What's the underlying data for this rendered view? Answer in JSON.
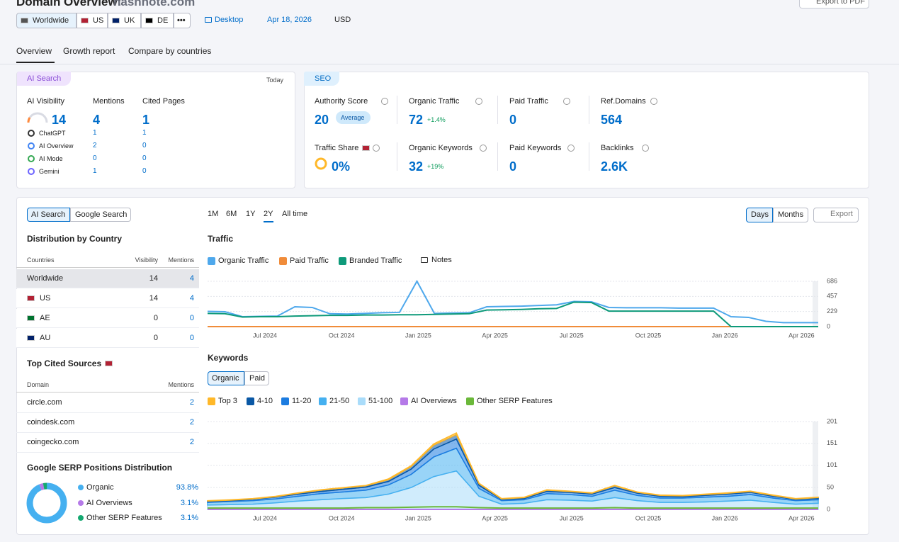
{
  "header": {
    "title": "Domain Overview:",
    "domain": "hashnote.com",
    "export": "Export to PDF"
  },
  "filters": {
    "regions": [
      "Worldwide",
      "US",
      "UK",
      "DE"
    ],
    "more": "•••",
    "device": "Desktop",
    "date": "Apr 18, 2026",
    "currency": "USD"
  },
  "tabs": [
    "Overview",
    "Growth report",
    "Compare by countries"
  ],
  "ai_search": {
    "badge": "AI Search",
    "period": "Today",
    "metrics": [
      {
        "label": "AI Visibility",
        "value": 14
      },
      {
        "label": "Mentions",
        "value": 4
      },
      {
        "label": "Cited Pages",
        "value": 1
      }
    ],
    "rows": [
      {
        "name": "ChatGPT",
        "mentions": 1,
        "cited": 1
      },
      {
        "name": "AI Overview",
        "mentions": 2,
        "cited": 0
      },
      {
        "name": "AI Mode",
        "mentions": 0,
        "cited": 0
      },
      {
        "name": "Gemini",
        "mentions": 1,
        "cited": 0
      }
    ]
  },
  "seo": {
    "badge": "SEO",
    "metrics": [
      {
        "label": "Authority Score",
        "value": 20,
        "badge": "Average"
      },
      {
        "label": "Organic Traffic",
        "value": 72,
        "change": "+1.4%"
      },
      {
        "label": "Paid Traffic",
        "value": 0
      },
      {
        "label": "Ref.Domains",
        "value": 564
      },
      {
        "label": "Traffic Share",
        "value": "0%"
      },
      {
        "label": "Organic Keywords",
        "value": 32,
        "change": "+19%"
      },
      {
        "label": "Paid Keywords",
        "value": 0
      },
      {
        "label": "Backlinks",
        "value": "2.6K"
      }
    ]
  },
  "left_panel": {
    "toggle": [
      "AI Search",
      "Google Search"
    ],
    "distribution": {
      "title": "Distribution by Country",
      "headers": [
        "Countries",
        "Visibility",
        "Mentions"
      ],
      "rows": [
        [
          "Worldwide",
          14,
          4
        ],
        [
          "US",
          14,
          4
        ],
        [
          "AE",
          0,
          0
        ],
        [
          "AU",
          0,
          0
        ]
      ]
    },
    "cited": {
      "title": "Top Cited Sources",
      "headers": [
        "Domain",
        "Mentions"
      ],
      "rows": [
        [
          "circle.com",
          2
        ],
        [
          "coindesk.com",
          2
        ],
        [
          "coingecko.com",
          2
        ]
      ]
    },
    "serp": {
      "type": "pie",
      "title": "Google SERP Positions Distribution",
      "categories": [
        "Organic",
        "AI Overviews",
        "Other SERP Features"
      ],
      "values": [
        93.8,
        3.1,
        3.1
      ],
      "value_labels": [
        "93.8%",
        "3.1%",
        "3.1%"
      ],
      "colors": [
        "#45b0f0",
        "#b57ae8",
        "#14a870"
      ]
    }
  },
  "chart_controls": {
    "ranges": [
      "1M",
      "6M",
      "1Y",
      "2Y",
      "All time"
    ],
    "granularity": [
      "Days",
      "Months"
    ],
    "export": "Export"
  },
  "traffic_chart": {
    "type": "line",
    "title": "Traffic",
    "notes": "Notes",
    "xticks": [
      "Jul 2024",
      "Oct 2024",
      "Jan 2025",
      "Apr 2025",
      "Jul 2025",
      "Oct 2025",
      "Jan 2026",
      "Apr 2026"
    ],
    "ylim": [
      0,
      686
    ],
    "yticks": [
      0,
      229,
      457,
      686
    ],
    "series": [
      {
        "name": "Organic Traffic",
        "color": "#4ea8ec",
        "values": [
          230,
          225,
          150,
          155,
          160,
          300,
          290,
          195,
          190,
          200,
          210,
          215,
          686,
          200,
          205,
          210,
          300,
          305,
          310,
          320,
          330,
          380,
          375,
          290,
          285,
          285,
          285,
          280,
          280,
          280,
          150,
          140,
          80,
          60,
          60,
          60
        ]
      },
      {
        "name": "Paid Traffic",
        "color": "#f08c3a",
        "values": [
          0,
          0,
          0,
          0,
          0,
          0,
          0,
          0,
          0,
          0,
          0,
          0,
          0,
          0,
          0,
          0,
          0,
          0,
          0,
          0,
          0,
          0,
          0,
          0,
          0,
          0,
          0,
          0,
          0,
          0,
          0,
          0,
          0,
          0,
          0,
          0
        ]
      },
      {
        "name": "Branded Traffic",
        "color": "#0e9a7a",
        "values": [
          200,
          195,
          145,
          150,
          150,
          160,
          165,
          170,
          170,
          175,
          175,
          180,
          180,
          185,
          190,
          195,
          250,
          255,
          260,
          270,
          275,
          370,
          365,
          235,
          235,
          235,
          235,
          235,
          235,
          235,
          0,
          0,
          0,
          0,
          0,
          0
        ]
      }
    ]
  },
  "keywords_chart": {
    "type": "area",
    "title": "Keywords",
    "toggle": [
      "Organic",
      "Paid"
    ],
    "xticks": [
      "Jul 2024",
      "Oct 2024",
      "Jan 2025",
      "Apr 2025",
      "Jul 2025",
      "Oct 2025",
      "Jan 2026",
      "Apr 2026"
    ],
    "ylim": [
      0,
      201
    ],
    "yticks": [
      0,
      50,
      101,
      151,
      201
    ],
    "series": [
      {
        "name": "Top 3",
        "color": "#ffb829",
        "values": [
          1,
          1,
          1,
          1,
          1,
          1,
          1,
          1,
          2,
          2,
          3,
          4,
          1,
          1,
          1,
          1,
          1,
          1,
          1,
          1,
          1,
          1,
          1,
          1,
          1,
          1,
          1,
          1
        ]
      },
      {
        "name": "4-10",
        "color": "#0a58a5",
        "values": [
          1,
          1,
          1,
          1,
          2,
          3,
          3,
          3,
          4,
          6,
          9,
          10,
          4,
          1,
          2,
          3,
          2,
          2,
          4,
          2,
          2,
          2,
          2,
          2,
          2,
          2,
          1,
          2
        ]
      },
      {
        "name": "11-20",
        "color": "#1c7ce0",
        "values": [
          2,
          2,
          3,
          4,
          5,
          5,
          6,
          7,
          8,
          12,
          18,
          21,
          7,
          3,
          3,
          5,
          5,
          5,
          6,
          5,
          4,
          3,
          4,
          5,
          5,
          4,
          3,
          3
        ]
      },
      {
        "name": "21-50",
        "color": "#45b0f0",
        "values": [
          6,
          7,
          8,
          9,
          11,
          14,
          15,
          17,
          21,
          30,
          45,
          52,
          18,
          8,
          8,
          14,
          13,
          11,
          17,
          12,
          10,
          10,
          11,
          11,
          13,
          10,
          8,
          8
        ]
      },
      {
        "name": "51-100",
        "color": "#a9dcfa",
        "values": [
          10,
          11,
          12,
          15,
          19,
          22,
          25,
          27,
          35,
          50,
          75,
          88,
          30,
          12,
          14,
          22,
          21,
          19,
          27,
          20,
          16,
          16,
          17,
          19,
          21,
          16,
          12,
          14
        ]
      },
      {
        "name": "AI Overviews",
        "color": "#b57ae8",
        "kind": "line",
        "values": [
          0,
          0,
          0,
          0,
          0,
          0,
          0,
          0,
          0,
          0,
          0,
          0,
          0,
          0,
          0,
          0,
          0,
          0,
          0,
          0,
          0,
          0,
          0,
          0,
          0,
          0,
          0,
          0
        ]
      },
      {
        "name": "Other SERP Features",
        "color": "#6bb83a",
        "kind": "line",
        "values": [
          3,
          3,
          3,
          3,
          3,
          3,
          3,
          4,
          4,
          5,
          6,
          6,
          4,
          3,
          3,
          3,
          3,
          3,
          4,
          3,
          3,
          3,
          3,
          3,
          3,
          3,
          3,
          3
        ]
      }
    ]
  }
}
